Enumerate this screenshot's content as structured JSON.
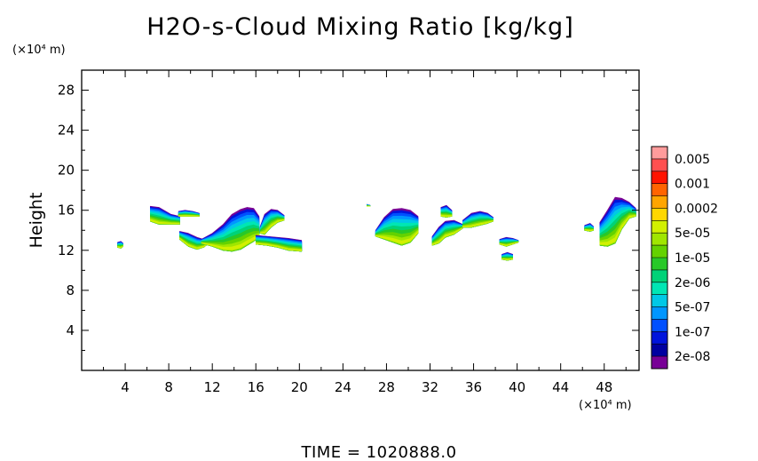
{
  "chart_data": {
    "type": "heatmap",
    "title": "H2O-s-Cloud Mixing Ratio [kg/kg]",
    "ylabel": "Height",
    "xlabel": "",
    "x_unit": "(×10⁴ m)",
    "y_unit": "(×10⁴ m)",
    "footer": "TIME = 1020888.0",
    "xlim": [
      0,
      51.2
    ],
    "ylim": [
      0,
      30
    ],
    "x_ticks": [
      4,
      8,
      12,
      16,
      20,
      24,
      28,
      32,
      36,
      40,
      44,
      48
    ],
    "y_ticks": [
      4,
      8,
      12,
      16,
      20,
      24,
      28
    ],
    "colorbar": {
      "labels": [
        "0.005",
        "0.001",
        "0.0002",
        "5e-05",
        "1e-05",
        "2e-06",
        "5e-07",
        "1e-07",
        "2e-08"
      ],
      "colors": [
        "#ff9c9c",
        "#ff5050",
        "#ff1400",
        "#ff6400",
        "#ffa500",
        "#ffd700",
        "#d2f000",
        "#a0e600",
        "#64d200",
        "#28c828",
        "#00d278",
        "#00e6b4",
        "#00c8e6",
        "#0096ff",
        "#0050ff",
        "#0014dc",
        "#0000a0",
        "#780096"
      ]
    },
    "clouds": [
      {
        "x": [
          6.3,
          7.1,
          8.2,
          9.0
        ],
        "top": [
          16.4,
          16.3,
          15.6,
          15.4
        ],
        "base": [
          14.9,
          14.6,
          14.6,
          14.6
        ]
      },
      {
        "x": [
          3.3,
          3.6,
          3.8
        ],
        "top": [
          12.8,
          12.9,
          12.7
        ],
        "base": [
          12.3,
          12.2,
          12.4
        ]
      },
      {
        "x": [
          9.0,
          9.8,
          10.6,
          11.2,
          11.8
        ],
        "top": [
          13.9,
          13.7,
          13.3,
          13.1,
          12.9
        ],
        "base": [
          13.1,
          12.4,
          12.1,
          12.3,
          12.8
        ]
      },
      {
        "x": [
          8.9,
          9.5,
          10.2,
          10.8
        ],
        "top": [
          15.9,
          16.0,
          15.9,
          15.7
        ],
        "base": [
          15.4,
          15.4,
          15.4,
          15.4
        ]
      },
      {
        "x": [
          11.0,
          12.0,
          13.0,
          13.8,
          14.6,
          15.2,
          15.8,
          16.3
        ],
        "top": [
          13.1,
          13.7,
          14.6,
          15.6,
          16.1,
          16.3,
          16.2,
          15.4
        ],
        "base": [
          12.7,
          12.4,
          12.0,
          11.9,
          12.1,
          12.5,
          12.9,
          13.3
        ]
      },
      {
        "x": [
          16.4,
          16.8,
          17.4,
          18.0,
          18.6
        ],
        "top": [
          14.4,
          15.6,
          16.1,
          16.0,
          15.5
        ],
        "base": [
          13.7,
          13.6,
          14.3,
          14.8,
          15.0
        ]
      },
      {
        "x": [
          16.0,
          17.0,
          18.0,
          19.0,
          20.2
        ],
        "top": [
          13.5,
          13.4,
          13.3,
          13.2,
          13.0
        ],
        "base": [
          12.6,
          12.5,
          12.3,
          12.0,
          11.9
        ]
      },
      {
        "x": [
          26.2,
          26.5
        ],
        "top": [
          16.6,
          16.5
        ],
        "base": [
          16.4,
          16.4
        ]
      },
      {
        "x": [
          27.0,
          27.8,
          28.6,
          29.4,
          30.2,
          30.9
        ],
        "top": [
          14.0,
          15.3,
          16.1,
          16.2,
          16.0,
          15.4
        ],
        "base": [
          13.4,
          13.1,
          12.8,
          12.5,
          12.8,
          13.7
        ]
      },
      {
        "x": [
          33.0,
          33.5,
          34.0
        ],
        "top": [
          16.3,
          16.5,
          16.0
        ],
        "base": [
          15.4,
          15.3,
          15.4
        ]
      },
      {
        "x": [
          32.2,
          32.8,
          33.4,
          34.2,
          35.0
        ],
        "top": [
          13.4,
          14.3,
          14.9,
          15.0,
          14.6
        ],
        "base": [
          12.5,
          12.7,
          13.3,
          13.6,
          14.2
        ]
      },
      {
        "x": [
          35.0,
          35.8,
          36.6,
          37.3,
          37.8
        ],
        "top": [
          15.0,
          15.7,
          15.9,
          15.7,
          15.3
        ],
        "base": [
          14.3,
          14.3,
          14.5,
          14.7,
          14.9
        ]
      },
      {
        "x": [
          38.4,
          39.0,
          39.6,
          40.1
        ],
        "top": [
          13.1,
          13.3,
          13.2,
          13.0
        ],
        "base": [
          12.6,
          12.4,
          12.6,
          12.8
        ]
      },
      {
        "x": [
          38.6,
          39.1,
          39.6
        ],
        "top": [
          11.6,
          11.8,
          11.6
        ],
        "base": [
          11.1,
          11.0,
          11.1
        ]
      },
      {
        "x": [
          46.2,
          46.7,
          47.0
        ],
        "top": [
          14.5,
          14.7,
          14.4
        ],
        "base": [
          14.0,
          13.9,
          14.0
        ]
      },
      {
        "x": [
          47.6,
          48.3,
          49.0,
          49.6,
          50.3,
          50.9
        ],
        "top": [
          14.8,
          16.0,
          17.3,
          17.2,
          16.8,
          16.2
        ],
        "base": [
          12.5,
          12.4,
          12.7,
          14.1,
          15.2,
          15.4
        ]
      }
    ]
  }
}
